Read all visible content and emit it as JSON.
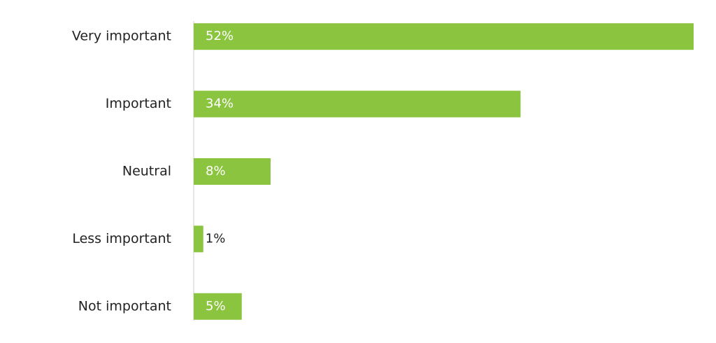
{
  "chart_data": {
    "type": "bar",
    "orientation": "horizontal",
    "categories": [
      "Very important",
      "Important",
      "Neutral",
      "Less important",
      "Not important"
    ],
    "values": [
      52,
      34,
      8,
      1,
      5
    ],
    "value_labels": [
      "52%",
      "34%",
      "8%",
      "1%",
      "5%"
    ],
    "color": "#8bc540",
    "xlim": [
      0,
      52
    ]
  }
}
